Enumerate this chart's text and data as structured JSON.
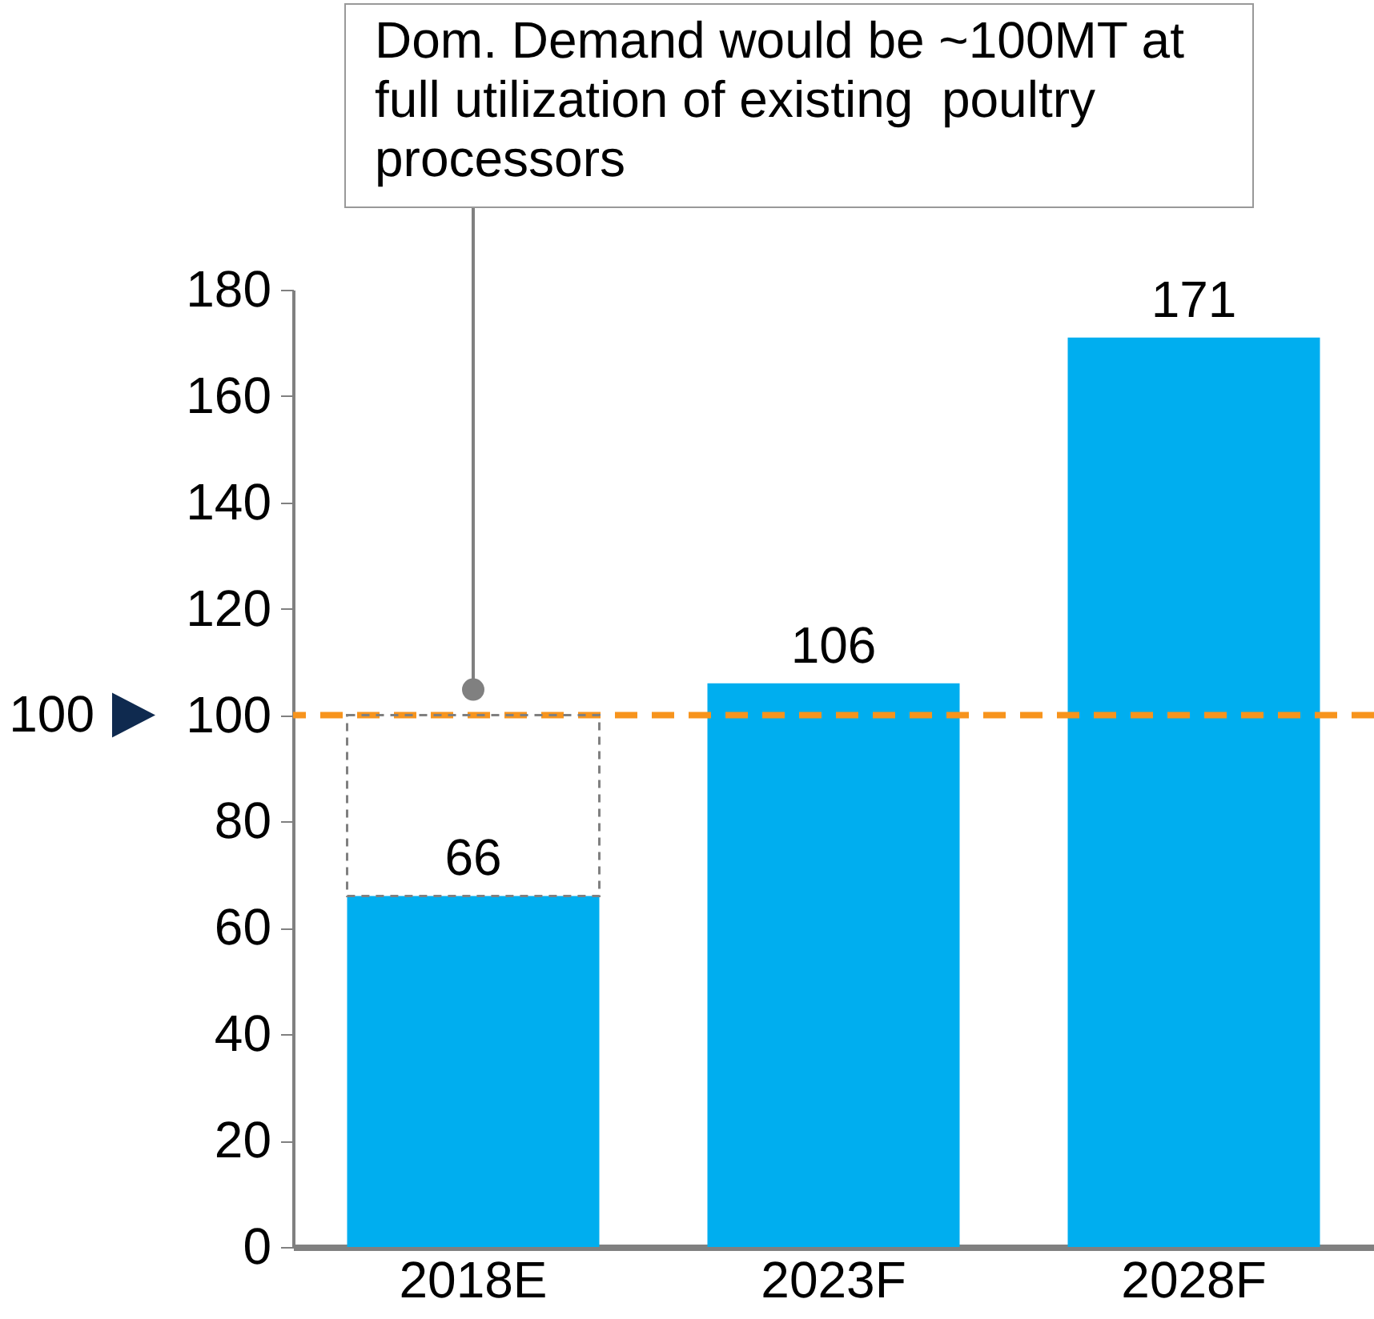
{
  "chart_data": {
    "type": "bar",
    "categories": [
      "2018E",
      "2023F",
      "2028F"
    ],
    "values": [
      66,
      106,
      171
    ],
    "color": "#00aeef",
    "ylim": [
      0,
      180
    ],
    "yticks": [
      0,
      20,
      40,
      60,
      80,
      100,
      120,
      140,
      160,
      180
    ],
    "data_labels": true,
    "ref_lines": [
      {
        "axis": "y",
        "value": 100,
        "color": "#f7941d",
        "line_style": "dashed"
      }
    ],
    "annotations": [
      "Dom. Demand would be ~100MT at full utilization of existing  poultry processors",
      "100"
    ]
  }
}
